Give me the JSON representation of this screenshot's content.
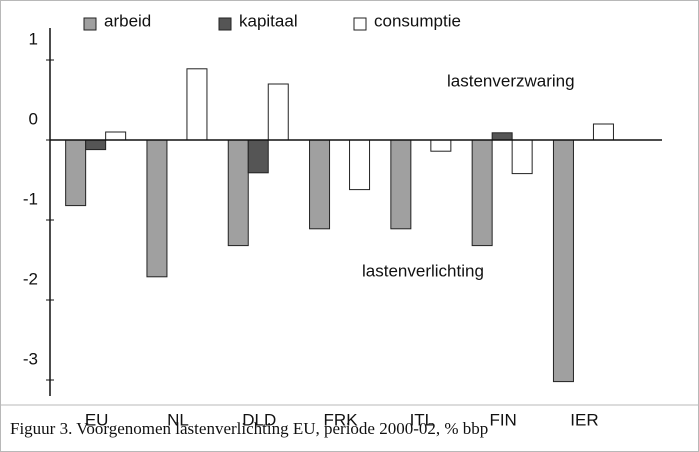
{
  "chart_data": {
    "type": "bar",
    "caption": "Figuur 3. Voorgenomen lastenverlichting EU, periode 2000-02, % bbp",
    "categories": [
      "EU",
      "NL",
      "DLD",
      "FRK",
      "ITL",
      "FIN",
      "IER"
    ],
    "series": [
      {
        "name": "arbeid",
        "color": "#a0a0a0",
        "values": [
          -0.82,
          -1.71,
          -1.32,
          -1.11,
          -1.11,
          -1.32,
          -3.02
        ]
      },
      {
        "name": "kapitaal",
        "color": "#555555",
        "values": [
          -0.12,
          null,
          -0.41,
          null,
          null,
          0.09,
          null
        ]
      },
      {
        "name": "consumptie",
        "color": "#ffffff",
        "values": [
          0.1,
          0.89,
          0.7,
          -0.62,
          -0.14,
          -0.42,
          0.2
        ]
      }
    ],
    "annotations": [
      "lastenverzwaring",
      "lastenverlichting"
    ],
    "ylim": [
      -3.2,
      1.4
    ],
    "yticks": [
      1,
      0,
      -1,
      -2,
      -3
    ],
    "grid": false
  }
}
